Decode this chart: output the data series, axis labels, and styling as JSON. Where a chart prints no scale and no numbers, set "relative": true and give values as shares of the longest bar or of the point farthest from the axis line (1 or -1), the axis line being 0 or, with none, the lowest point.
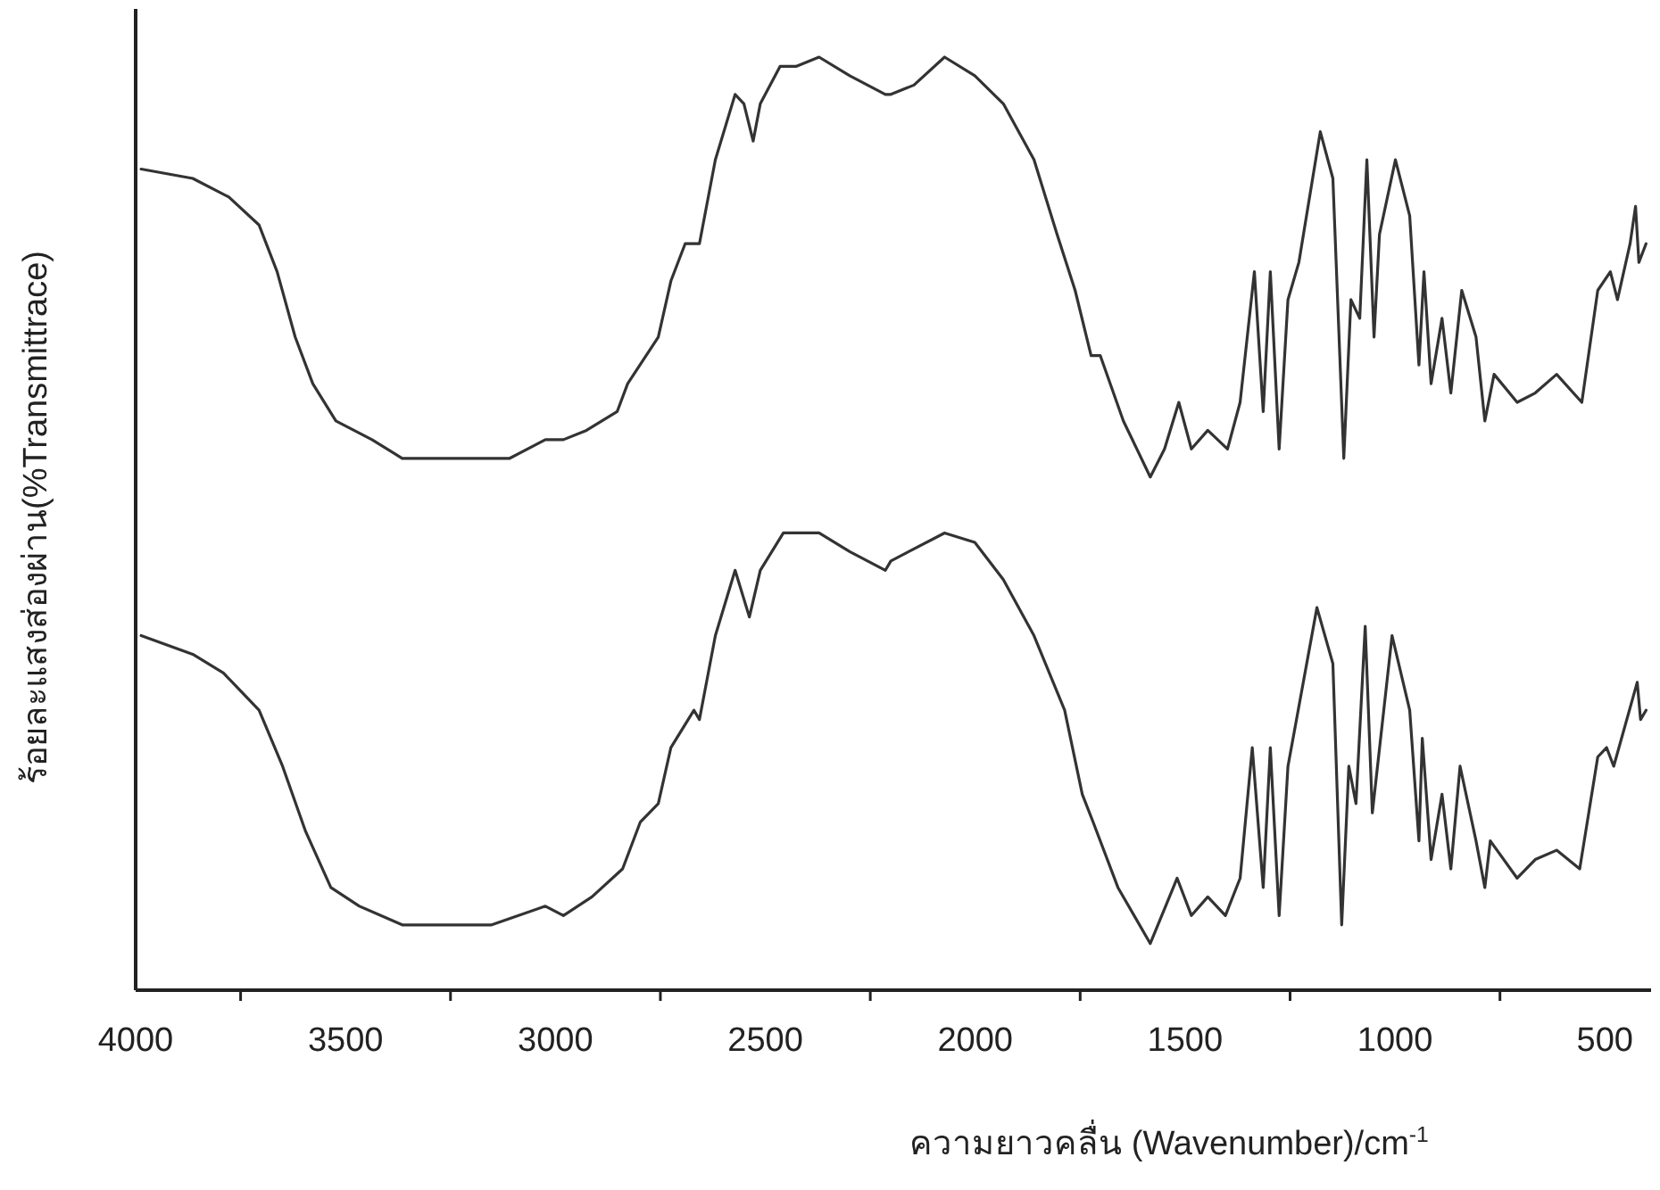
{
  "chart_data": {
    "type": "line",
    "relative": true,
    "xlabel": "ความยาวคลื่น (Wavenumber)/cm$^{-1}$",
    "ylabel": "ร้อยละแสงส่องผ่าน(%Transmittrace)",
    "xlim": [
      4000,
      390
    ],
    "xticks": [
      4000,
      {
        "value": 3750,
        "label": null
      },
      3500,
      {
        "value": 3250,
        "label": null
      },
      3000,
      {
        "value": 2750,
        "label": null
      },
      2500,
      {
        "value": 2250,
        "label": null
      },
      2000,
      {
        "value": 1750,
        "label": null
      },
      1500,
      {
        "value": 1250,
        "label": null
      },
      1000,
      {
        "value": 750,
        "label": null
      },
      500
    ],
    "tick_labels": "x",
    "grid": false,
    "marker": "none",
    "line_style": "solid",
    "series": [
      {
        "color": "#333333",
        "x": [
          3987,
          3864,
          3778,
          3706,
          3663,
          3620,
          3578,
          3523,
          3437,
          3365,
          3224,
          3109,
          3024,
          2981,
          2926,
          2853,
          2828,
          2755,
          2725,
          2691,
          2657,
          2619,
          2572,
          2551,
          2529,
          2512,
          2465,
          2427,
          2372,
          2299,
          2214,
          2201,
          2146,
          2073,
          2001,
          1933,
          1860,
          1805,
          1762,
          1724,
          1702,
          1647,
          1583,
          1549,
          1515,
          1485,
          1446,
          1399,
          1369,
          1335,
          1314,
          1297,
          1276,
          1255,
          1229,
          1178,
          1148,
          1122,
          1105,
          1084,
          1067,
          1050,
          1037,
          999,
          965,
          943,
          931,
          914,
          888,
          867,
          841,
          807,
          786,
          764,
          709,
          666,
          615,
          555,
          517,
          487,
          470,
          440,
          427,
          419,
          402
        ],
        "values": [
          0.88,
          0.87,
          0.85,
          0.82,
          0.77,
          0.7,
          0.65,
          0.61,
          0.59,
          0.57,
          0.57,
          0.57,
          0.59,
          0.59,
          0.6,
          0.62,
          0.65,
          0.7,
          0.76,
          0.8,
          0.8,
          0.89,
          0.96,
          0.95,
          0.91,
          0.95,
          0.99,
          0.99,
          1.0,
          0.98,
          0.96,
          0.96,
          0.97,
          1.0,
          0.98,
          0.95,
          0.89,
          0.81,
          0.75,
          0.68,
          0.68,
          0.61,
          0.55,
          0.58,
          0.63,
          0.58,
          0.6,
          0.58,
          0.63,
          0.77,
          0.62,
          0.77,
          0.58,
          0.74,
          0.78,
          0.92,
          0.87,
          0.57,
          0.74,
          0.72,
          0.89,
          0.7,
          0.81,
          0.89,
          0.83,
          0.67,
          0.77,
          0.65,
          0.72,
          0.64,
          0.75,
          0.7,
          0.61,
          0.66,
          0.63,
          0.64,
          0.66,
          0.63,
          0.75,
          0.77,
          0.74,
          0.8,
          0.84,
          0.78,
          0.8
        ]
      },
      {
        "color": "#333333",
        "x": [
          3987,
          3864,
          3791,
          3706,
          3650,
          3595,
          3535,
          3467,
          3365,
          3152,
          3024,
          2981,
          2913,
          2840,
          2798,
          2755,
          2725,
          2670,
          2657,
          2619,
          2572,
          2538,
          2512,
          2457,
          2372,
          2299,
          2214,
          2201,
          2073,
          2001,
          1933,
          1860,
          1787,
          1745,
          1719,
          1660,
          1583,
          1519,
          1485,
          1446,
          1404,
          1369,
          1340,
          1314,
          1297,
          1276,
          1255,
          1186,
          1148,
          1127,
          1110,
          1093,
          1071,
          1054,
          1007,
          965,
          943,
          935,
          914,
          888,
          867,
          845,
          807,
          786,
          773,
          709,
          666,
          615,
          560,
          517,
          496,
          479,
          423,
          415,
          402
        ],
        "values": [
          0.38,
          0.36,
          0.34,
          0.3,
          0.24,
          0.17,
          0.11,
          0.09,
          0.07,
          0.07,
          0.09,
          0.08,
          0.1,
          0.13,
          0.18,
          0.2,
          0.26,
          0.3,
          0.29,
          0.38,
          0.45,
          0.4,
          0.45,
          0.49,
          0.49,
          0.47,
          0.45,
          0.46,
          0.49,
          0.48,
          0.44,
          0.38,
          0.3,
          0.21,
          0.18,
          0.11,
          0.05,
          0.12,
          0.08,
          0.1,
          0.08,
          0.12,
          0.26,
          0.11,
          0.26,
          0.08,
          0.24,
          0.41,
          0.35,
          0.07,
          0.24,
          0.2,
          0.39,
          0.19,
          0.38,
          0.3,
          0.16,
          0.27,
          0.14,
          0.21,
          0.13,
          0.24,
          0.16,
          0.11,
          0.16,
          0.12,
          0.14,
          0.15,
          0.13,
          0.25,
          0.26,
          0.24,
          0.33,
          0.29,
          0.3
        ]
      }
    ]
  }
}
